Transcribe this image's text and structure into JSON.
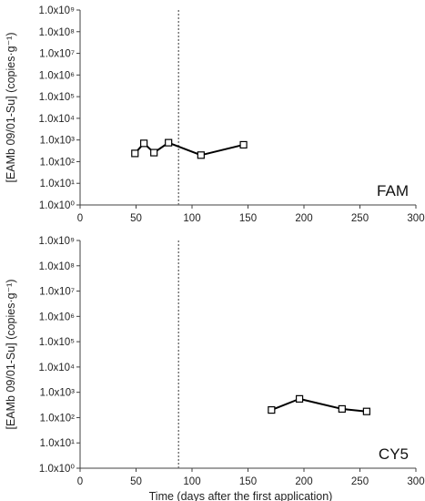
{
  "chart_data": [
    {
      "type": "line",
      "panel_label": "FAM",
      "xlabel": "",
      "ylabel": "[EAMb 09/01-Su] (copies·g⁻¹)",
      "xlim": [
        0,
        300
      ],
      "ylim": [
        1,
        1000000000
      ],
      "y_scale": "log",
      "x_ticks": [
        "0",
        "50",
        "100",
        "150",
        "200",
        "250",
        "300"
      ],
      "y_ticks": [
        "1.0x10⁰",
        "1.0x10¹",
        "1.0x10²",
        "1.0x10³",
        "1.0x10⁴",
        "1.0x10⁵",
        "1.0x10⁶",
        "1.0x10⁷",
        "1.0x10⁸",
        "1.0x10⁹"
      ],
      "reference_line_x": 88,
      "marker": "open-square",
      "grid": false,
      "series": [
        {
          "x": [
            49,
            57,
            66,
            79,
            108,
            146
          ],
          "y": [
            240,
            700,
            260,
            750,
            200,
            600
          ]
        }
      ]
    },
    {
      "type": "line",
      "panel_label": "CY5",
      "xlabel": "Time (days after the first application)",
      "ylabel": "[EAMb 09/01-Su] (copies·g⁻¹)",
      "xlim": [
        0,
        300
      ],
      "ylim": [
        1,
        1000000000
      ],
      "y_scale": "log",
      "x_ticks": [
        "0",
        "50",
        "100",
        "150",
        "200",
        "250",
        "300"
      ],
      "y_ticks": [
        "1.0x10⁰",
        "1.0x10¹",
        "1.0x10²",
        "1.0x10³",
        "1.0x10⁴",
        "1.0x10⁵",
        "1.0x10⁶",
        "1.0x10⁷",
        "1.0x10⁸",
        "1.0x10⁹"
      ],
      "reference_line_x": 88,
      "marker": "open-square",
      "grid": false,
      "series": [
        {
          "x": [
            171,
            196,
            234,
            256
          ],
          "y": [
            200,
            550,
            220,
            175
          ]
        }
      ]
    }
  ],
  "colors": {
    "line": "#000000",
    "axis": "#404040",
    "reference_line": "#6f6f6f",
    "marker_fill": "#ffffff"
  }
}
